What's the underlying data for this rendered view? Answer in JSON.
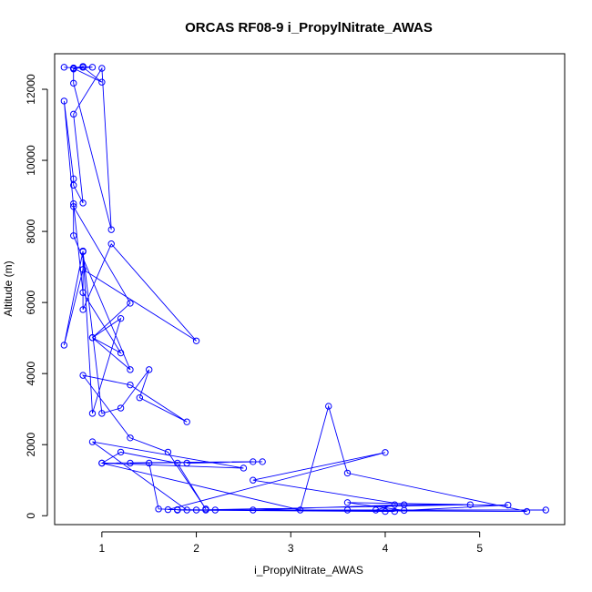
{
  "chart_data": {
    "type": "line",
    "title": "ORCAS RF08-9 i_PropylNitrate_AWAS",
    "xlabel": "i_PropylNitrate_AWAS",
    "ylabel": "Altitude (m)",
    "xlim": [
      0.5,
      5.9
    ],
    "ylim": [
      -250,
      13000
    ],
    "xticks": [
      1,
      2,
      3,
      4,
      5
    ],
    "yticks": [
      0,
      2000,
      4000,
      6000,
      8000,
      10000,
      12000
    ],
    "series_color": "#0000ff",
    "marker": "open-circle",
    "series": [
      {
        "x": [
          0.6,
          0.7,
          0.8,
          0.8,
          0.8,
          0.9,
          0.7,
          1.0,
          0.8,
          0.7,
          0.7,
          1.1,
          1.0,
          0.7,
          0.8,
          0.7,
          0.7,
          0.6,
          0.7,
          1.3,
          0.9,
          1.2,
          0.8,
          0.7,
          0.7,
          1.3,
          0.9,
          1.2,
          0.9,
          0.8,
          0.6,
          0.8,
          2.0,
          1.1,
          0.8,
          0.8,
          1.0,
          1.2,
          1.5,
          1.4,
          1.9,
          1.3,
          0.8,
          1.3,
          1.7,
          2.1,
          1.8,
          1.2,
          1.0,
          2.6,
          1.9,
          2.7,
          1.3,
          1.5,
          1.6,
          1.9,
          0.9,
          2.5,
          1.0,
          3.1,
          3.4,
          3.6,
          5.5,
          1.7,
          4.0,
          2.6,
          4.2,
          2.6,
          3.6,
          4.1,
          1.8,
          3.9,
          4.1,
          5.3,
          4.2,
          3.6,
          4.9,
          2.0,
          4.0,
          2.1,
          5.7,
          1.8,
          2.2,
          1.8
        ],
        "y": [
          12620,
          12600,
          12640,
          12620,
          12640,
          12620,
          12590,
          12200,
          12620,
          12570,
          12170,
          8050,
          12590,
          11300,
          8800,
          9300,
          9480,
          11670,
          8700,
          5980,
          5010,
          4580,
          6280,
          8780,
          7880,
          4110,
          5010,
          5550,
          2880,
          7450,
          4800,
          6930,
          4920,
          7650,
          5800,
          7430,
          2880,
          3030,
          4110,
          3320,
          2640,
          3680,
          3950,
          2190,
          1790,
          190,
          1480,
          1790,
          1480,
          1520,
          1480,
          1520,
          1480,
          1480,
          190,
          160,
          2080,
          1340,
          1480,
          160,
          3080,
          1200,
          120,
          170,
          1780,
          1000,
          310,
          160,
          160,
          120,
          160,
          160,
          310,
          300,
          150,
          370,
          310,
          160,
          120,
          160,
          160,
          160,
          160,
          170
        ]
      }
    ]
  }
}
